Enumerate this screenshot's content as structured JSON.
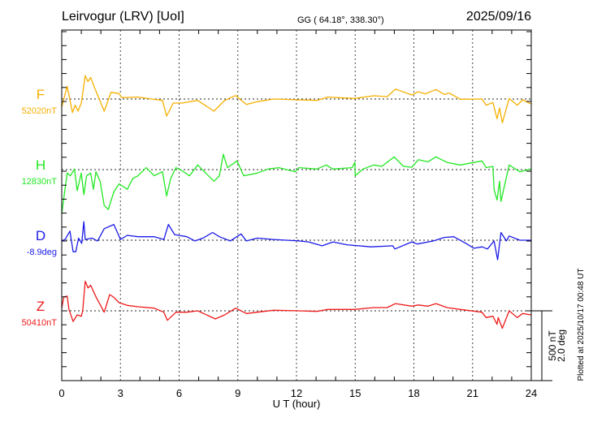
{
  "header": {
    "station": "Leirvogur (LRV)  [UoI]",
    "coords": "GG ( 64.18°, 338.30°)",
    "date": "2025/09/16"
  },
  "footer": {
    "plotted_at": "Plotted at 2025/10/17 00:48 UT"
  },
  "chart_data": {
    "type": "line",
    "title": "Leirvogur (LRV)  [UoI]",
    "xlabel": "U T (hour)",
    "xlim": [
      0,
      24
    ],
    "xticks": [
      "0",
      "3",
      "6",
      "9",
      "12",
      "15",
      "18",
      "21",
      "24"
    ],
    "grid": "dotted verticals every 3 hours, dotted baseline per component",
    "scale_bar": {
      "nT_label": "500 nT",
      "deg_label": "2.0 deg",
      "nT": 500,
      "deg": 2.0
    },
    "series": [
      {
        "name": "F",
        "baseline_label": "52020nT",
        "color": "#f5b000",
        "unit": "nT",
        "x": [
          0,
          0.28,
          0.55,
          0.69,
          0.83,
          1.0,
          1.2,
          1.34,
          1.48,
          1.69,
          2.17,
          2.52,
          2.93,
          3.07,
          3.9,
          4.6,
          5.15,
          5.36,
          5.7,
          6.12,
          6.95,
          7.78,
          8.33,
          8.89,
          9.44,
          10.0,
          10.83,
          12.07,
          13.04,
          13.59,
          14.98,
          15.95,
          16.64,
          17.06,
          17.89,
          18.23,
          18.58,
          19.13,
          19.55,
          19.82,
          20.38,
          21.48,
          21.69,
          22.04,
          22.25,
          22.38,
          22.52,
          22.87,
          23.28,
          23.56,
          23.98
        ],
        "y": [
          -58,
          91,
          -97,
          -44,
          -87,
          -29,
          168,
          125,
          154,
          77,
          -87,
          48,
          39,
          10,
          14,
          0,
          -10,
          -122,
          -29,
          -29,
          -10,
          -87,
          -10,
          25,
          -39,
          -19,
          0,
          -6,
          -10,
          14,
          4,
          23,
          17,
          71,
          29,
          52,
          37,
          68,
          33,
          42,
          -2,
          0,
          -44,
          -25,
          -141,
          -64,
          -170,
          4,
          -44,
          -6,
          -35
        ]
      },
      {
        "name": "H",
        "baseline_label": "12830nT",
        "color": "#22e822",
        "unit": "nT",
        "x": [
          0,
          0.28,
          0.44,
          0.65,
          0.79,
          1.0,
          1.13,
          1.27,
          1.48,
          1.62,
          1.75,
          1.96,
          2.17,
          2.38,
          2.66,
          2.93,
          3.35,
          3.63,
          3.9,
          4.32,
          4.73,
          5.15,
          5.36,
          5.57,
          5.84,
          6.12,
          6.53,
          6.95,
          7.36,
          7.78,
          8.06,
          8.26,
          8.47,
          8.96,
          9.3,
          10.0,
          10.55,
          11.1,
          11.93,
          12.13,
          13.04,
          13.52,
          13.87,
          14.84,
          14.98,
          15.0,
          15.4,
          15.95,
          16.36,
          16.99,
          17.47,
          17.89,
          18.23,
          18.72,
          19.13,
          19.69,
          20.38,
          21.48,
          21.69,
          22.04,
          22.1,
          22.25,
          22.38,
          22.45,
          22.87,
          23.42,
          23.98
        ],
        "y": [
          -315,
          -25,
          -44,
          4,
          -151,
          -25,
          -179,
          -44,
          -25,
          -141,
          -15,
          -83,
          -257,
          -286,
          -160,
          -102,
          -141,
          -64,
          -44,
          14,
          -44,
          -15,
          -189,
          -64,
          14,
          -6,
          -44,
          33,
          -25,
          -83,
          -44,
          110,
          14,
          62,
          -44,
          -25,
          4,
          14,
          -15,
          14,
          4,
          33,
          4,
          14,
          52,
          -44,
          4,
          33,
          23,
          91,
          23,
          17,
          71,
          56,
          91,
          52,
          33,
          62,
          14,
          23,
          -141,
          -218,
          -83,
          -228,
          33,
          -15,
          4
        ]
      },
      {
        "name": "D",
        "baseline_label": "-8.9deg",
        "color": "#1a1ae8",
        "unit": "deg",
        "x": [
          0,
          0.17,
          0.42,
          0.58,
          0.72,
          0.86,
          1.02,
          1.13,
          1.2,
          1.55,
          1.83,
          2.17,
          2.66,
          2.79,
          3.0,
          3.35,
          3.9,
          4.73,
          5.22,
          5.45,
          5.77,
          6.4,
          6.81,
          7.22,
          7.71,
          8.06,
          8.61,
          9.17,
          9.44,
          10.0,
          10.83,
          12.13,
          12.62,
          13.31,
          13.87,
          14.57,
          15.81,
          16.92,
          17.03,
          17.89,
          18.17,
          19.0,
          19.55,
          20.04,
          20.66,
          21.07,
          21.48,
          21.76,
          22.1,
          22.28,
          22.45,
          22.73,
          22.87,
          23.42,
          23.98
        ],
        "y": [
          -0.02,
          0.02,
          0.26,
          -0.33,
          -0.33,
          0.06,
          -0.09,
          0.53,
          0.02,
          0.06,
          -0.02,
          0.33,
          0.45,
          0.29,
          0.02,
          0.14,
          0.1,
          0.1,
          0.02,
          0.45,
          0.16,
          0.1,
          -0.02,
          0.06,
          0.22,
          0.1,
          -0.02,
          0.18,
          -0.02,
          0.06,
          0.02,
          -0.02,
          -0.05,
          -0.16,
          -0.05,
          -0.13,
          -0.19,
          -0.16,
          -0.25,
          -0.05,
          -0.11,
          -0.02,
          0.08,
          0.1,
          -0.09,
          -0.23,
          -0.19,
          -0.25,
          -0.02,
          -0.56,
          0.22,
          -0.02,
          0.12,
          0,
          0
        ]
      },
      {
        "name": "Z",
        "baseline_label": "50410nT",
        "color": "#ee1a1a",
        "unit": "nT",
        "x": [
          0,
          0.1,
          0.28,
          0.37,
          0.58,
          0.79,
          1.0,
          1.07,
          1.2,
          1.34,
          1.48,
          1.76,
          2.17,
          2.45,
          2.66,
          2.93,
          3.35,
          3.9,
          4.73,
          5.22,
          5.4,
          5.84,
          6.4,
          6.95,
          7.85,
          8.33,
          8.89,
          9.44,
          10.0,
          10.83,
          12.13,
          13.04,
          13.59,
          14.98,
          15.95,
          16.64,
          17.06,
          17.89,
          18.23,
          18.72,
          19.13,
          19.69,
          20.38,
          21.48,
          21.69,
          22.04,
          22.25,
          22.31,
          22.52,
          22.87,
          23.28,
          23.56,
          23.98
        ],
        "y": [
          19,
          97,
          106,
          10,
          -77,
          -29,
          -39,
          0,
          212,
          164,
          183,
          97,
          -10,
          116,
          97,
          58,
          39,
          29,
          19,
          -10,
          -68,
          -10,
          -10,
          0,
          -58,
          -29,
          19,
          -19,
          -10,
          4,
          0,
          -4,
          10,
          10,
          23,
          23,
          52,
          33,
          42,
          33,
          52,
          23,
          10,
          -10,
          -48,
          -39,
          -97,
          -48,
          -125,
          0,
          -48,
          -19,
          -29
        ]
      }
    ]
  }
}
